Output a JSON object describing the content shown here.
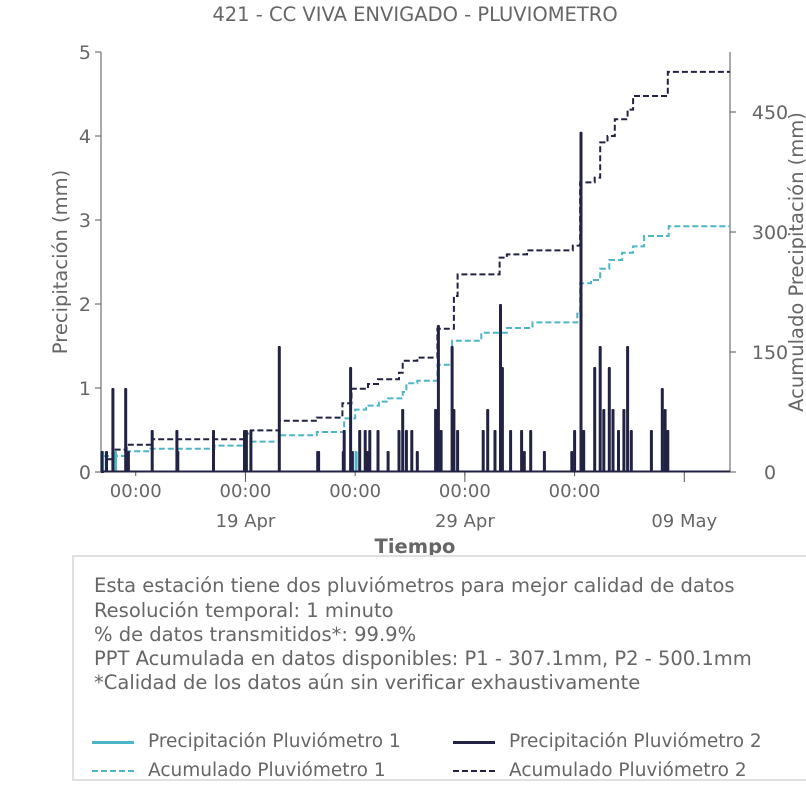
{
  "chart_data": {
    "type": "line",
    "title": "421 - CC VIVA ENVIGADO - PLUVIOMETRO",
    "xlabel": "Tiempo",
    "ylabel": "Precipitación (mm)",
    "y2label": "Acumulado Precipitación (mm)",
    "xlim": [
      "2024-04-12T10:00",
      "2024-05-11T02:00"
    ],
    "ylim": [
      0,
      5
    ],
    "y2lim": [
      0,
      525
    ],
    "yticks": [
      0,
      1,
      2,
      3,
      4,
      5
    ],
    "y2ticks": [
      0,
      150,
      300,
      450
    ],
    "xticks_minor": [
      {
        "x": "2024-04-14T00:00",
        "label": "00:00"
      },
      {
        "x": "2024-04-19T00:00",
        "label": "00:00"
      },
      {
        "x": "2024-04-24T00:00",
        "label": "00:00"
      },
      {
        "x": "2024-04-29T00:00",
        "label": "00:00"
      },
      {
        "x": "2024-05-04T00:00",
        "label": "00:00"
      }
    ],
    "xticks_major": [
      {
        "x": "2024-04-19T00:00",
        "label": "19 Apr"
      },
      {
        "x": "2024-04-29T00:00",
        "label": "29 Apr"
      },
      {
        "x": "2024-05-09T00:00",
        "label": "09 May"
      }
    ],
    "grid": false,
    "series": [
      {
        "name": "Precipitación Pluviómetro 1",
        "color": "#4db6c6",
        "style": "solid",
        "axis": "left",
        "points": [
          [
            "2024-04-12T12:00",
            0.25
          ],
          [
            "2024-04-13T02:00",
            0.25
          ],
          [
            "2024-04-24T01:00",
            0.25
          ]
        ]
      },
      {
        "name": "Precipitación Pluviómetro 2",
        "color": "#222244",
        "style": "solid",
        "axis": "left",
        "points": [
          [
            "2024-04-12T11:00",
            0.25
          ],
          [
            "2024-04-12T16:00",
            0.25
          ],
          [
            "2024-04-12T23:00",
            1.0
          ],
          [
            "2024-04-13T13:00",
            1.0
          ],
          [
            "2024-04-13T16:00",
            0.25
          ],
          [
            "2024-04-14T18:00",
            0.5
          ],
          [
            "2024-04-15T21:00",
            0.5
          ],
          [
            "2024-04-15T22:00",
            0.25
          ],
          [
            "2024-04-17T13:00",
            0.5
          ],
          [
            "2024-04-18T23:00",
            0.5
          ],
          [
            "2024-04-19T01:00",
            0.5
          ],
          [
            "2024-04-19T06:00",
            0.5
          ],
          [
            "2024-04-20T13:00",
            1.5
          ],
          [
            "2024-04-22T07:00",
            0.25
          ],
          [
            "2024-04-22T08:00",
            0.25
          ],
          [
            "2024-04-23T11:00",
            0.25
          ],
          [
            "2024-04-23T12:00",
            0.5
          ],
          [
            "2024-04-23T19:00",
            1.25
          ],
          [
            "2024-04-23T21:00",
            0.25
          ],
          [
            "2024-04-24T05:00",
            0.5
          ],
          [
            "2024-04-24T11:00",
            0.5
          ],
          [
            "2024-04-24T14:00",
            0.25
          ],
          [
            "2024-04-24T16:00",
            0.5
          ],
          [
            "2024-04-25T01:00",
            0.5
          ],
          [
            "2024-04-25T12:00",
            0.25
          ],
          [
            "2024-04-26T00:00",
            0.5
          ],
          [
            "2024-04-26T04:00",
            0.75
          ],
          [
            "2024-04-26T08:00",
            0.5
          ],
          [
            "2024-04-26T14:00",
            0.5
          ],
          [
            "2024-04-26T20:00",
            0.25
          ],
          [
            "2024-04-27T16:00",
            0.75
          ],
          [
            "2024-04-27T19:00",
            1.75
          ],
          [
            "2024-04-27T22:00",
            0.5
          ],
          [
            "2024-04-28T10:00",
            1.5
          ],
          [
            "2024-04-28T12:00",
            0.75
          ],
          [
            "2024-04-28T16:00",
            0.5
          ],
          [
            "2024-04-29T20:00",
            0.5
          ],
          [
            "2024-04-30T01:00",
            0.75
          ],
          [
            "2024-04-30T09:00",
            0.5
          ],
          [
            "2024-04-30T15:00",
            2.0
          ],
          [
            "2024-04-30T17:00",
            1.25
          ],
          [
            "2024-05-01T02:00",
            0.5
          ],
          [
            "2024-05-01T14:00",
            0.5
          ],
          [
            "2024-05-01T17:00",
            0.25
          ],
          [
            "2024-05-02T00:00",
            0.5
          ],
          [
            "2024-05-02T15:00",
            0.25
          ],
          [
            "2024-05-03T21:00",
            0.25
          ],
          [
            "2024-05-04T00:00",
            0.5
          ],
          [
            "2024-05-04T07:00",
            4.05
          ],
          [
            "2024-05-04T10:00",
            0.5
          ],
          [
            "2024-05-04T22:00",
            1.25
          ],
          [
            "2024-05-05T04:00",
            1.5
          ],
          [
            "2024-05-05T08:00",
            0.75
          ],
          [
            "2024-05-05T14:00",
            1.25
          ],
          [
            "2024-05-05T18:00",
            0.75
          ],
          [
            "2024-05-06T00:00",
            0.5
          ],
          [
            "2024-05-06T06:00",
            0.75
          ],
          [
            "2024-05-06T10:00",
            1.5
          ],
          [
            "2024-05-06T14:00",
            0.5
          ],
          [
            "2024-05-07T12:00",
            0.5
          ],
          [
            "2024-05-08T00:00",
            1.0
          ],
          [
            "2024-05-08T03:00",
            0.75
          ],
          [
            "2024-05-08T06:00",
            0.5
          ]
        ]
      },
      {
        "name": "Acumulado Pluviómetro 1",
        "color": "#4db6c6",
        "style": "dashed",
        "axis": "right",
        "steps": [
          [
            "2024-04-12T10:00",
            0
          ],
          [
            "2024-04-12T12:00",
            20
          ],
          [
            "2024-04-13T14:00",
            26
          ],
          [
            "2024-04-14T16:00",
            29
          ],
          [
            "2024-04-17T14:00",
            33
          ],
          [
            "2024-04-18T23:00",
            38
          ],
          [
            "2024-04-20T13:00",
            46
          ],
          [
            "2024-04-22T06:00",
            50
          ],
          [
            "2024-04-23T12:00",
            67
          ],
          [
            "2024-04-24T00:00",
            78
          ],
          [
            "2024-04-24T12:00",
            83
          ],
          [
            "2024-04-25T02:00",
            88
          ],
          [
            "2024-04-25T12:00",
            92
          ],
          [
            "2024-04-26T04:00",
            100
          ],
          [
            "2024-04-26T08:00",
            111
          ],
          [
            "2024-04-26T20:00",
            114
          ],
          [
            "2024-04-27T18:00",
            134
          ],
          [
            "2024-04-28T10:00",
            164
          ],
          [
            "2024-04-29T18:00",
            174
          ],
          [
            "2024-04-30T22:00",
            180
          ],
          [
            "2024-05-02T02:00",
            187
          ],
          [
            "2024-05-04T03:00",
            198
          ],
          [
            "2024-05-04T06:00",
            236
          ],
          [
            "2024-05-04T18:00",
            240
          ],
          [
            "2024-05-05T04:00",
            254
          ],
          [
            "2024-05-05T14:00",
            265
          ],
          [
            "2024-05-06T04:00",
            274
          ],
          [
            "2024-05-06T16:00",
            282
          ],
          [
            "2024-05-07T04:00",
            295
          ],
          [
            "2024-05-08T07:00",
            307.1
          ],
          [
            "2024-05-11T02:00",
            307.1
          ]
        ]
      },
      {
        "name": "Acumulado Pluviómetro 2",
        "color": "#222244",
        "style": "dashed",
        "axis": "right",
        "steps": [
          [
            "2024-04-12T10:00",
            0
          ],
          [
            "2024-04-12T12:00",
            16
          ],
          [
            "2024-04-12T23:00",
            28
          ],
          [
            "2024-04-13T14:00",
            34
          ],
          [
            "2024-04-14T18:00",
            41
          ],
          [
            "2024-04-18T23:00",
            48
          ],
          [
            "2024-04-19T06:00",
            52
          ],
          [
            "2024-04-20T13:00",
            64
          ],
          [
            "2024-04-22T06:00",
            68
          ],
          [
            "2024-04-23T10:00",
            86
          ],
          [
            "2024-04-23T20:00",
            104
          ],
          [
            "2024-04-24T14:00",
            110
          ],
          [
            "2024-04-25T01:00",
            116
          ],
          [
            "2024-04-26T00:00",
            124
          ],
          [
            "2024-04-26T04:00",
            139
          ],
          [
            "2024-04-26T20:00",
            143
          ],
          [
            "2024-04-27T18:00",
            179
          ],
          [
            "2024-04-28T12:00",
            220
          ],
          [
            "2024-04-28T16:00",
            247
          ],
          [
            "2024-04-30T14:00",
            268
          ],
          [
            "2024-04-30T22:00",
            272
          ],
          [
            "2024-05-01T20:00",
            277
          ],
          [
            "2024-05-03T22:00",
            283
          ],
          [
            "2024-05-04T06:00",
            362
          ],
          [
            "2024-05-04T22:00",
            368
          ],
          [
            "2024-05-05T04:00",
            412
          ],
          [
            "2024-05-05T12:00",
            420
          ],
          [
            "2024-05-05T20:00",
            441
          ],
          [
            "2024-05-06T10:00",
            453
          ],
          [
            "2024-05-06T16:00",
            470
          ],
          [
            "2024-05-08T06:00",
            500.1
          ],
          [
            "2024-05-11T02:00",
            500.1
          ]
        ]
      }
    ]
  },
  "info": {
    "lines": [
      "Esta estación tiene dos pluviómetros para mejor calidad de datos",
      "Resolución temporal: 1 minuto",
      "% de datos transmitidos*: 99.9%",
      "PPT Acumulada en datos disponibles: P1 - 307.1mm, P2 - 500.1mm",
      "*Calidad de los datos aún sin verificar exhaustivamente"
    ]
  },
  "legend": {
    "items": [
      {
        "label": "Precipitación Pluviómetro 1",
        "color": "#4db6c6",
        "style": "solid"
      },
      {
        "label": "Precipitación Pluviómetro 2",
        "color": "#222244",
        "style": "solid"
      },
      {
        "label": "Acumulado Pluviómetro 1",
        "color": "#4db6c6",
        "style": "dashed"
      },
      {
        "label": "Acumulado Pluviómetro 2",
        "color": "#222244",
        "style": "dashed"
      }
    ]
  }
}
